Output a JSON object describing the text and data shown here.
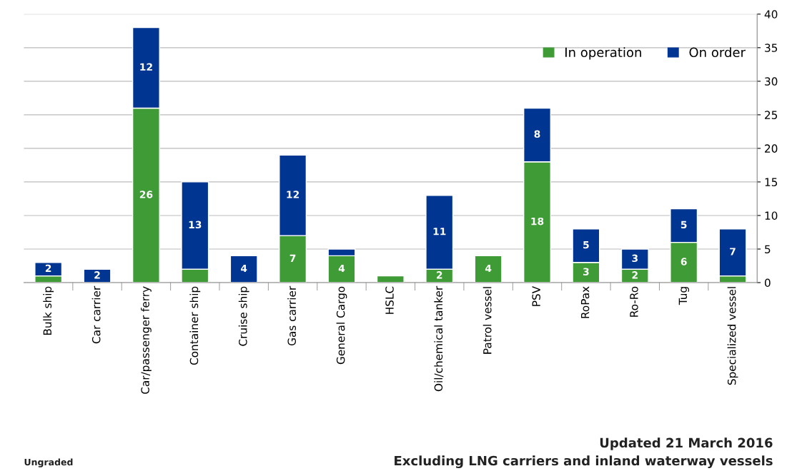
{
  "chart_data": {
    "type": "bar",
    "stacked": true,
    "categories": [
      "Bulk ship",
      "Car carrier",
      "Car/passenger ferry",
      "Container ship",
      "Cruise ship",
      "Gas carrier",
      "General Cargo",
      "HSLC",
      "Oil/chemical tanker",
      "Patrol vessel",
      "PSV",
      "RoPax",
      "Ro-Ro",
      "Tug",
      "Specialized vessel"
    ],
    "series": [
      {
        "name": "In operation",
        "color": "#3f9b35",
        "values": [
          1,
          0,
          26,
          2,
          0,
          7,
          4,
          1,
          2,
          4,
          18,
          3,
          2,
          6,
          1
        ],
        "value_labels": [
          null,
          null,
          "26",
          null,
          null,
          "7",
          "4",
          null,
          "2",
          "4",
          "18",
          "3",
          "2",
          "6",
          null
        ]
      },
      {
        "name": "On order",
        "color": "#003591",
        "values": [
          2,
          2,
          12,
          13,
          4,
          12,
          1,
          0,
          11,
          0,
          8,
          5,
          3,
          5,
          7
        ],
        "value_labels": [
          "2",
          "2",
          "12",
          "13",
          "4",
          "12",
          null,
          null,
          "11",
          null,
          "8",
          "5",
          "3",
          "5",
          "7"
        ]
      }
    ],
    "ylim": [
      0,
      40
    ],
    "yticks": [
      0,
      5,
      10,
      15,
      20,
      25,
      30,
      35,
      40
    ],
    "grid": "y",
    "legend": "top right",
    "annotations": [
      "Ungraded",
      "Updated 21 March 2016",
      "Excluding LNG carriers and inland waterway vessels"
    ]
  }
}
